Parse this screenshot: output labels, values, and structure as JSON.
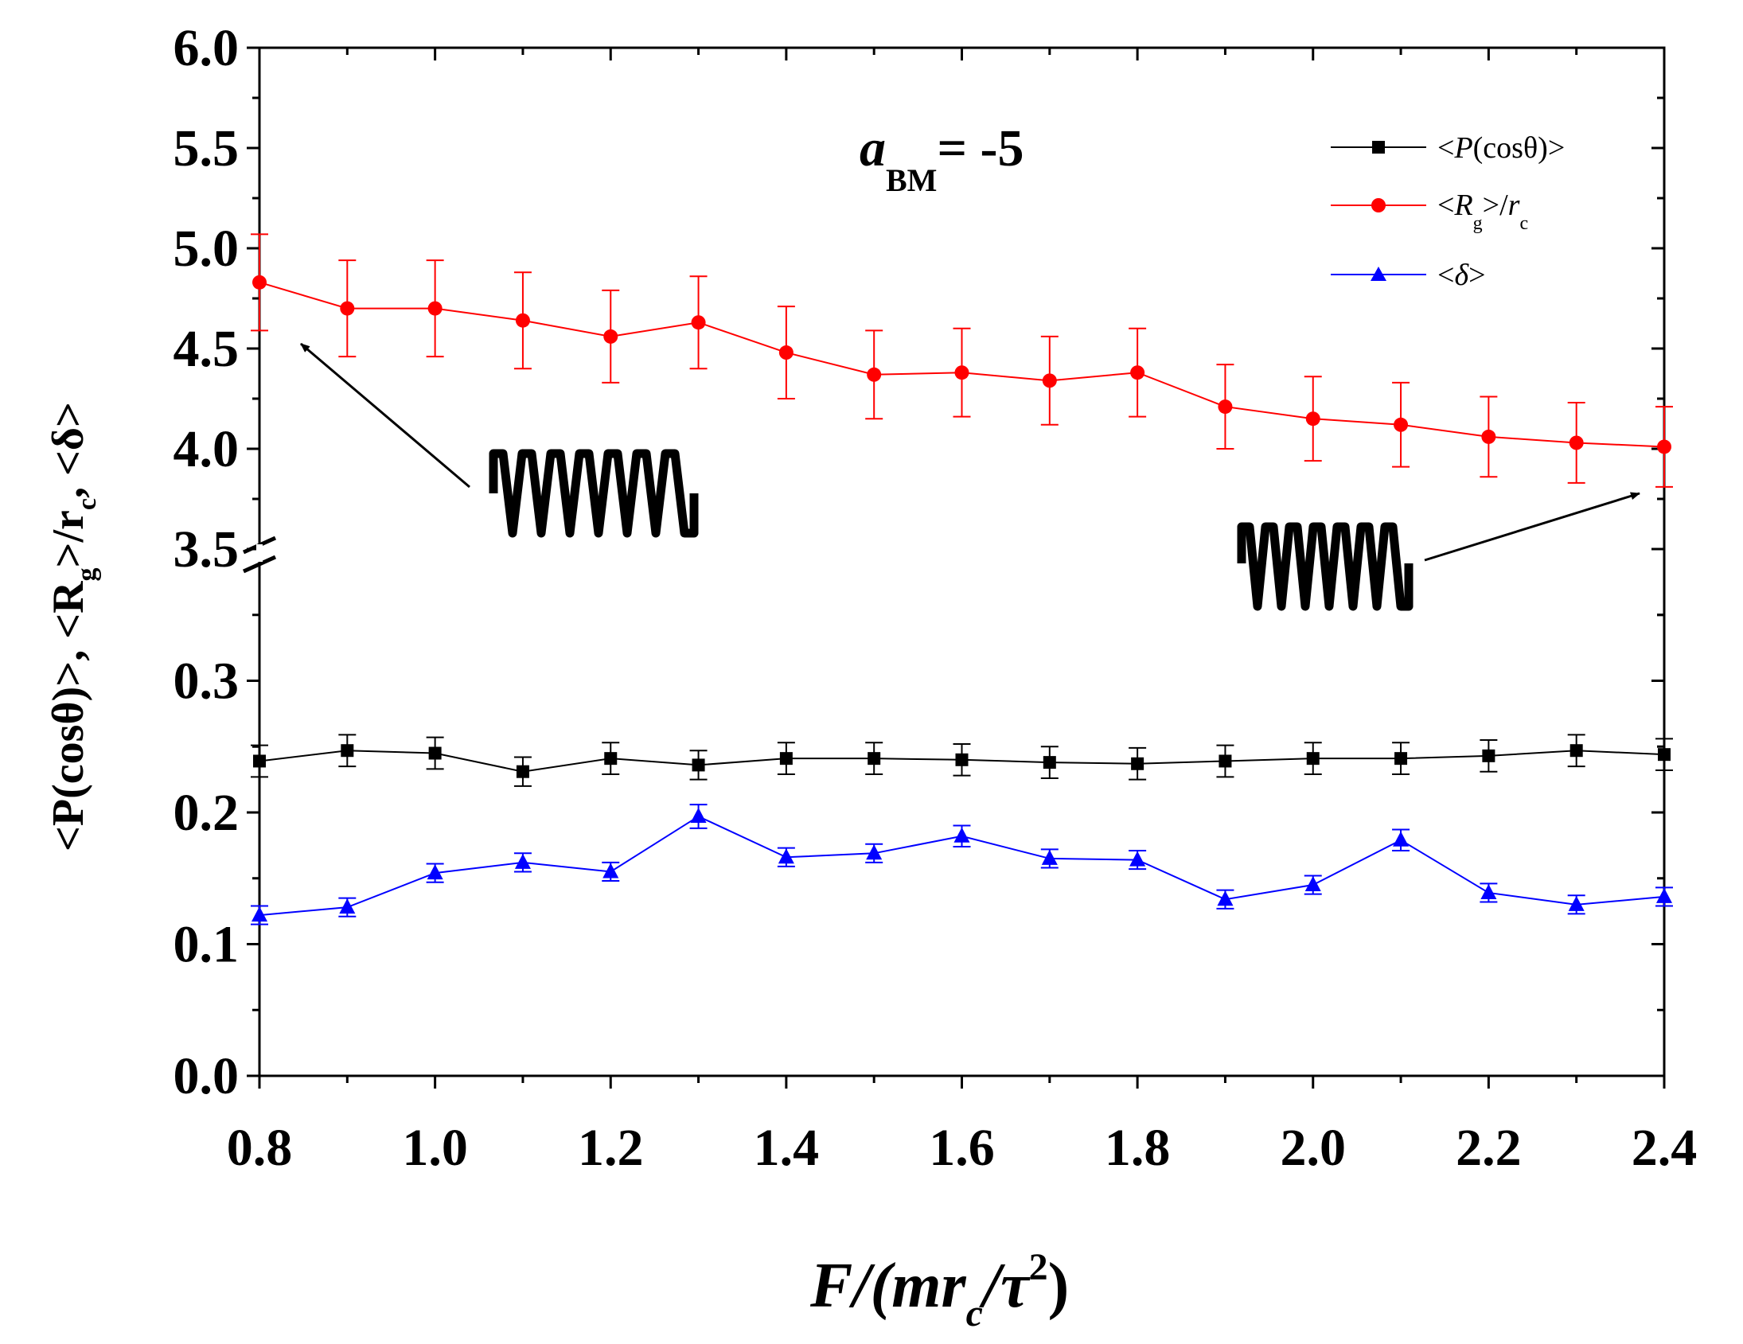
{
  "chart_data": {
    "type": "line",
    "annotation": {
      "symbol": "a",
      "subscript": "BM",
      "rest": "= -5"
    },
    "xlabel": {
      "prefix": "F/(mr",
      "sub": "c",
      "mid": "/τ",
      "sup": "2",
      "suffix": ")"
    },
    "ylabel": "<P(cosθ)>, <Rg>/rc, <δ>",
    "ylabel_parts": {
      "a": "<P(cosθ)>",
      "b": ", <R",
      "b_sub": "g",
      "c": ">/r",
      "c_sub": "c",
      "d": ", <δ>"
    },
    "xlim": [
      0.8,
      2.4
    ],
    "ylim_lower": [
      0.0,
      0.4
    ],
    "ylim_upper": [
      3.5,
      6.0
    ],
    "axis_break": true,
    "x_ticks": [
      "0.8",
      "1.0",
      "1.2",
      "1.4",
      "1.6",
      "1.8",
      "2.0",
      "2.2",
      "2.4"
    ],
    "y_ticks_lower": [
      "0.0",
      "0.1",
      "0.2",
      "0.3"
    ],
    "y_ticks_upper": [
      "3.5",
      "4.0",
      "4.5",
      "5.0",
      "5.5",
      "6.0"
    ],
    "legend_position": "top-right",
    "x": [
      0.8,
      0.9,
      1.0,
      1.1,
      1.2,
      1.3,
      1.4,
      1.5,
      1.6,
      1.7,
      1.8,
      1.9,
      2.0,
      2.1,
      2.2,
      2.3,
      2.4
    ],
    "series": [
      {
        "name": "<P(cosθ)>",
        "legend": {
          "pre": "<",
          "italic": "P",
          "post": "(cosθ)>"
        },
        "color": "#000000",
        "marker": "square",
        "values": [
          0.239,
          0.247,
          0.245,
          0.231,
          0.241,
          0.236,
          0.241,
          0.241,
          0.24,
          0.238,
          0.237,
          0.239,
          0.241,
          0.241,
          0.243,
          0.247,
          0.244
        ],
        "errors": [
          0.012,
          0.012,
          0.012,
          0.011,
          0.012,
          0.011,
          0.012,
          0.012,
          0.012,
          0.012,
          0.012,
          0.012,
          0.012,
          0.012,
          0.012,
          0.012,
          0.012
        ]
      },
      {
        "name": "<Rg>/rc",
        "legend": {
          "pre": "<",
          "italic": "R",
          "sub1": "g",
          "mid": ">/",
          "italic2": "r",
          "sub2": "c"
        },
        "color": "#ff0000",
        "marker": "circle",
        "values": [
          4.83,
          4.7,
          4.7,
          4.64,
          4.56,
          4.63,
          4.48,
          4.37,
          4.38,
          4.34,
          4.38,
          4.21,
          4.15,
          4.12,
          4.06,
          4.03,
          4.01
        ],
        "errors": [
          0.24,
          0.24,
          0.24,
          0.24,
          0.23,
          0.23,
          0.23,
          0.22,
          0.22,
          0.22,
          0.22,
          0.21,
          0.21,
          0.21,
          0.2,
          0.2,
          0.2
        ]
      },
      {
        "name": "<δ>",
        "legend": {
          "pre": "<",
          "italic": "δ",
          "post": ">"
        },
        "color": "#0000ff",
        "marker": "triangle",
        "values": [
          0.122,
          0.128,
          0.154,
          0.162,
          0.155,
          0.197,
          0.166,
          0.169,
          0.182,
          0.165,
          0.164,
          0.134,
          0.145,
          0.179,
          0.139,
          0.13,
          0.136
        ],
        "errors": [
          0.007,
          0.007,
          0.007,
          0.007,
          0.007,
          0.009,
          0.007,
          0.007,
          0.008,
          0.007,
          0.007,
          0.007,
          0.007,
          0.008,
          0.007,
          0.007,
          0.007
        ]
      }
    ]
  }
}
